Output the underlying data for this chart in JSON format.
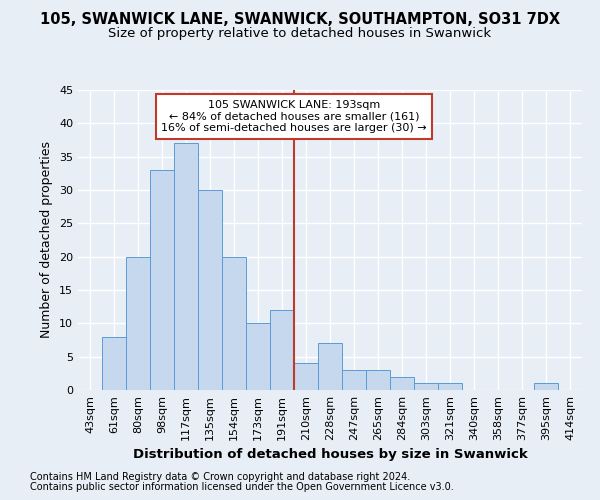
{
  "title1": "105, SWANWICK LANE, SWANWICK, SOUTHAMPTON, SO31 7DX",
  "title2": "Size of property relative to detached houses in Swanwick",
  "xlabel": "Distribution of detached houses by size in Swanwick",
  "ylabel": "Number of detached properties",
  "footer1": "Contains HM Land Registry data © Crown copyright and database right 2024.",
  "footer2": "Contains public sector information licensed under the Open Government Licence v3.0.",
  "bin_labels": [
    "43sqm",
    "61sqm",
    "80sqm",
    "98sqm",
    "117sqm",
    "135sqm",
    "154sqm",
    "173sqm",
    "191sqm",
    "210sqm",
    "228sqm",
    "247sqm",
    "265sqm",
    "284sqm",
    "303sqm",
    "321sqm",
    "340sqm",
    "358sqm",
    "377sqm",
    "395sqm",
    "414sqm"
  ],
  "values": [
    0,
    8,
    20,
    33,
    37,
    30,
    20,
    10,
    12,
    4,
    7,
    3,
    3,
    2,
    1,
    1,
    0,
    0,
    0,
    1,
    0
  ],
  "bar_color": "#c5d8ed",
  "bar_edge_color": "#5b9bd5",
  "vline_x": 8.5,
  "vline_color": "#c0392b",
  "annotation_line1": "105 SWANWICK LANE: 193sqm",
  "annotation_line2": "← 84% of detached houses are smaller (161)",
  "annotation_line3": "16% of semi-detached houses are larger (30) →",
  "annotation_box_color": "#ffffff",
  "annotation_box_edge": "#c0392b",
  "background_color": "#e8eef6",
  "ylim": [
    0,
    45
  ],
  "yticks": [
    0,
    5,
    10,
    15,
    20,
    25,
    30,
    35,
    40,
    45
  ],
  "grid_color": "#ffffff",
  "title1_fontsize": 10.5,
  "title2_fontsize": 9.5,
  "ylabel_fontsize": 9,
  "xlabel_fontsize": 9.5,
  "tick_fontsize": 8,
  "annot_fontsize": 8,
  "footer_fontsize": 7
}
